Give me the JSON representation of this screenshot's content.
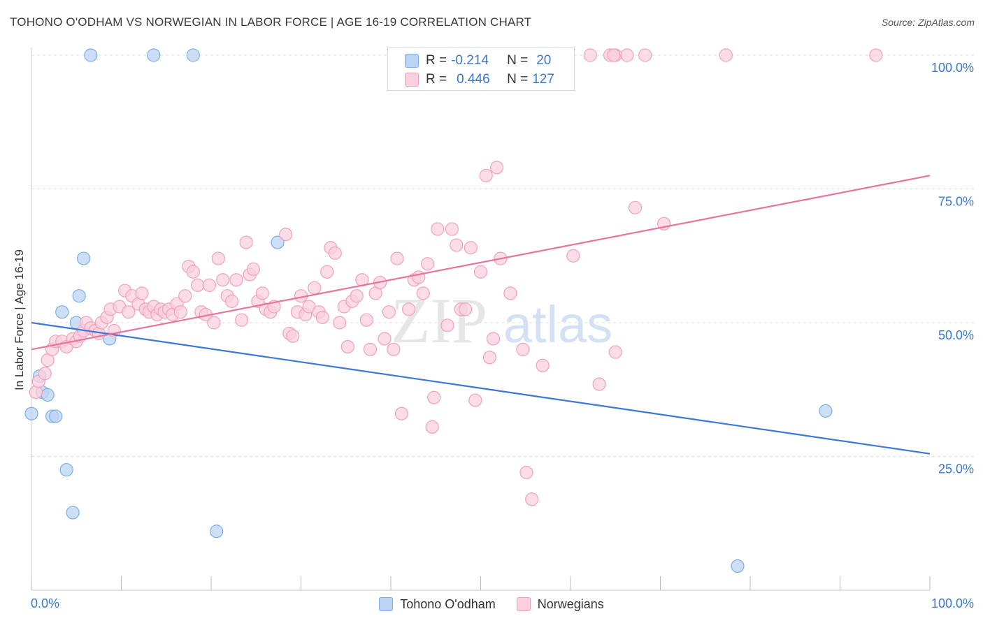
{
  "title": "TOHONO O'ODHAM VS NORWEGIAN IN LABOR FORCE | AGE 16-19 CORRELATION CHART",
  "source": "Source: ZipAtlas.com",
  "watermark": {
    "part1": "ZIP",
    "part2": "atlas"
  },
  "stats": [
    {
      "r_label": "R =",
      "r_value": "-0.214",
      "n_label": "N =",
      "n_value": "20",
      "color": "#7aaee8"
    },
    {
      "r_label": "R =",
      "r_value": "0.446",
      "n_label": "N =",
      "n_value": "127",
      "color": "#f0a0bc"
    }
  ],
  "legend": [
    {
      "label": "Tohono O'odham",
      "fill": "#bcd4f4",
      "stroke": "#7aaee8"
    },
    {
      "label": "Norwegians",
      "fill": "#fbd0de",
      "stroke": "#f0a0bc"
    }
  ],
  "chart_data": {
    "type": "scatter",
    "title": "TOHONO O'ODHAM VS NORWEGIAN IN LABOR FORCE | AGE 16-19 CORRELATION CHART",
    "xlabel": "",
    "ylabel": "In Labor Force | Age 16-19",
    "xlim": [
      0,
      100
    ],
    "ylim": [
      0,
      100
    ],
    "x_tick_labels": [
      "0.0%",
      "100.0%"
    ],
    "y_ticks": [
      25,
      50,
      75,
      100
    ],
    "y_tick_labels": [
      "25.0%",
      "50.0%",
      "75.0%",
      "100.0%"
    ],
    "grid": true,
    "legend_position": "bottom",
    "series": [
      {
        "name": "Tohono O'odham",
        "color": "#3b78d8",
        "fill": "#bcd4f4",
        "stroke": "#7aaee8",
        "trend": {
          "x0": 0,
          "y0": 50.0,
          "x1": 100,
          "y1": 25.5
        },
        "points": [
          [
            0.0,
            33.0
          ],
          [
            0.9,
            40.0
          ],
          [
            1.2,
            37.0
          ],
          [
            1.8,
            36.5
          ],
          [
            2.3,
            32.5
          ],
          [
            2.7,
            32.5
          ],
          [
            3.4,
            52.0
          ],
          [
            3.9,
            22.5
          ],
          [
            4.6,
            14.5
          ],
          [
            5.0,
            50.0
          ],
          [
            5.3,
            55.0
          ],
          [
            5.8,
            62.0
          ],
          [
            6.6,
            100.0
          ],
          [
            8.7,
            47.0
          ],
          [
            13.6,
            100.0
          ],
          [
            18.0,
            100.0
          ],
          [
            20.6,
            11.0
          ],
          [
            27.4,
            65.0
          ],
          [
            78.6,
            4.5
          ],
          [
            88.4,
            33.5
          ]
        ]
      },
      {
        "name": "Norwegians",
        "color": "#e8739b",
        "fill": "#fbd0de",
        "stroke": "#f0a0bc",
        "trend": {
          "x0": 0,
          "y0": 45.0,
          "x1": 100,
          "y1": 77.5
        },
        "points": [
          [
            0.5,
            37.0
          ],
          [
            0.8,
            39.0
          ],
          [
            1.5,
            40.5
          ],
          [
            1.8,
            43.0
          ],
          [
            2.3,
            45.0
          ],
          [
            2.7,
            46.5
          ],
          [
            3.4,
            46.5
          ],
          [
            3.9,
            45.5
          ],
          [
            4.6,
            47.0
          ],
          [
            5.0,
            46.5
          ],
          [
            5.4,
            47.5
          ],
          [
            5.8,
            48.5
          ],
          [
            6.1,
            50.0
          ],
          [
            6.6,
            49.0
          ],
          [
            7.1,
            48.5
          ],
          [
            7.5,
            48.0
          ],
          [
            7.8,
            50.0
          ],
          [
            8.4,
            51.0
          ],
          [
            8.8,
            52.5
          ],
          [
            9.2,
            48.5
          ],
          [
            9.8,
            53.0
          ],
          [
            10.4,
            56.0
          ],
          [
            10.8,
            52.0
          ],
          [
            11.2,
            55.0
          ],
          [
            11.9,
            53.5
          ],
          [
            12.3,
            55.5
          ],
          [
            12.7,
            52.5
          ],
          [
            13.1,
            52.0
          ],
          [
            13.6,
            53.0
          ],
          [
            14.0,
            51.5
          ],
          [
            14.4,
            52.5
          ],
          [
            14.8,
            52.0
          ],
          [
            15.3,
            52.5
          ],
          [
            15.7,
            51.5
          ],
          [
            16.2,
            53.5
          ],
          [
            16.6,
            52.0
          ],
          [
            17.1,
            55.0
          ],
          [
            17.5,
            60.5
          ],
          [
            18.0,
            59.5
          ],
          [
            18.5,
            57.0
          ],
          [
            18.9,
            52.0
          ],
          [
            19.4,
            51.5
          ],
          [
            19.8,
            57.0
          ],
          [
            20.3,
            50.0
          ],
          [
            20.8,
            62.0
          ],
          [
            21.3,
            58.0
          ],
          [
            21.8,
            55.0
          ],
          [
            22.3,
            54.0
          ],
          [
            22.8,
            58.0
          ],
          [
            23.4,
            50.5
          ],
          [
            23.9,
            65.0
          ],
          [
            24.3,
            59.0
          ],
          [
            24.7,
            60.0
          ],
          [
            25.2,
            54.0
          ],
          [
            25.7,
            55.5
          ],
          [
            26.1,
            52.5
          ],
          [
            26.6,
            52.0
          ],
          [
            27.0,
            53.0
          ],
          [
            28.3,
            66.5
          ],
          [
            28.7,
            48.0
          ],
          [
            29.1,
            47.5
          ],
          [
            29.6,
            52.0
          ],
          [
            30.0,
            55.0
          ],
          [
            30.5,
            51.5
          ],
          [
            30.9,
            53.0
          ],
          [
            31.5,
            56.5
          ],
          [
            32.0,
            52.0
          ],
          [
            32.4,
            51.0
          ],
          [
            32.9,
            59.5
          ],
          [
            33.3,
            64.0
          ],
          [
            33.8,
            63.0
          ],
          [
            34.3,
            50.0
          ],
          [
            34.8,
            53.0
          ],
          [
            35.2,
            45.5
          ],
          [
            35.7,
            54.0
          ],
          [
            36.2,
            55.0
          ],
          [
            36.8,
            58.0
          ],
          [
            37.3,
            50.5
          ],
          [
            37.7,
            45.0
          ],
          [
            38.3,
            55.5
          ],
          [
            38.8,
            57.5
          ],
          [
            39.3,
            47.0
          ],
          [
            39.8,
            52.0
          ],
          [
            40.3,
            45.0
          ],
          [
            40.7,
            62.0
          ],
          [
            41.2,
            33.0
          ],
          [
            42.0,
            52.5
          ],
          [
            42.6,
            58.0
          ],
          [
            43.1,
            58.5
          ],
          [
            43.6,
            55.5
          ],
          [
            44.1,
            61.0
          ],
          [
            44.6,
            30.5
          ],
          [
            44.8,
            36.0
          ],
          [
            45.2,
            67.5
          ],
          [
            46.3,
            49.5
          ],
          [
            46.8,
            67.5
          ],
          [
            47.3,
            64.5
          ],
          [
            47.8,
            52.5
          ],
          [
            48.3,
            52.5
          ],
          [
            48.9,
            64.0
          ],
          [
            49.4,
            35.5
          ],
          [
            50.0,
            59.5
          ],
          [
            50.6,
            77.5
          ],
          [
            51.0,
            43.5
          ],
          [
            51.4,
            47.0
          ],
          [
            51.8,
            79.0
          ],
          [
            52.2,
            62.0
          ],
          [
            53.3,
            55.5
          ],
          [
            54.7,
            45.0
          ],
          [
            55.1,
            22.0
          ],
          [
            55.7,
            17.0
          ],
          [
            56.9,
            42.0
          ],
          [
            60.3,
            62.5
          ],
          [
            63.2,
            38.5
          ],
          [
            65.0,
            44.5
          ],
          [
            67.2,
            71.5
          ],
          [
            70.4,
            68.5
          ],
          [
            62.2,
            100.0
          ],
          [
            64.4,
            100.0
          ],
          [
            65.0,
            100.0
          ],
          [
            66.3,
            100.0
          ],
          [
            68.3,
            100.0
          ],
          [
            77.3,
            100.0
          ],
          [
            94.0,
            100.0
          ],
          [
            64.8,
            100.0
          ]
        ]
      }
    ]
  }
}
